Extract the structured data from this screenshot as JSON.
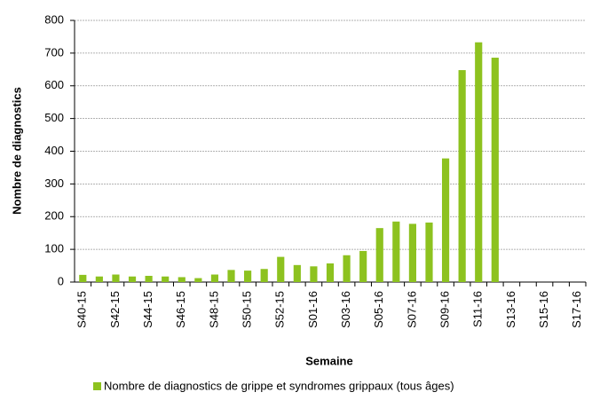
{
  "chart_data": {
    "type": "bar",
    "x_label": "Semaine",
    "y_label": "Nombre de diagnostics",
    "categories": [
      "S40-15",
      null,
      "S42-15",
      null,
      "S44-15",
      null,
      "S46-15",
      null,
      "S48-15",
      null,
      "S50-15",
      null,
      "S52-15",
      null,
      "S01-16",
      null,
      "S03-16",
      null,
      "S05-16",
      null,
      "S07-16",
      null,
      "S09-16",
      null,
      "S11-16",
      null,
      "S13-16",
      null,
      "S15-16",
      null,
      "S17-16"
    ],
    "series": [
      {
        "name": "Nombre de diagnostics de grippe et syndromes grippaux (tous âges)",
        "color": "#8dc21f",
        "values": [
          22,
          17,
          23,
          17,
          19,
          17,
          15,
          12,
          23,
          37,
          35,
          40,
          77,
          52,
          48,
          57,
          82,
          95,
          165,
          185,
          178,
          182,
          378,
          648,
          733,
          686,
          null,
          null,
          null,
          null,
          null
        ]
      }
    ],
    "ylim": [
      0,
      800
    ],
    "yticks": [
      0,
      100,
      200,
      300,
      400,
      500,
      600,
      700,
      800
    ],
    "grid": true
  }
}
